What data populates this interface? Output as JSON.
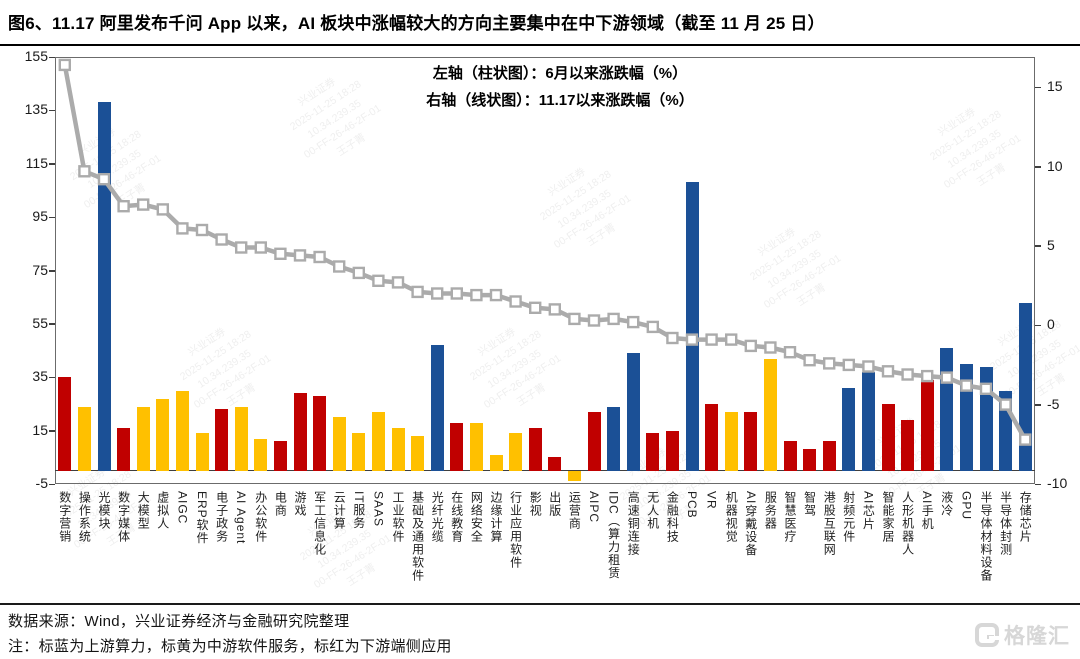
{
  "title": "图6、11.17 阿里发布千问 App 以来，AI 板块中涨幅较大的方向主要集中在中下游领域（截至 11 月 25 日）",
  "legend": {
    "line1": "左轴（柱状图）：6月以来涨跌幅（%）",
    "line2": "右轴（线状图）：11.17以来涨跌幅（%）"
  },
  "footer": {
    "source": "数据来源：Wind，兴业证券经济与金融研究院整理",
    "note": "注：标蓝为上游算力，标黄为中游软件服务，标红为下游端侧应用",
    "logo_text": "格隆汇"
  },
  "colors": {
    "blue": "#1B5096",
    "yellow": "#FFC000",
    "red": "#C00000",
    "line_gray": "#ABABAB",
    "axis_dark": "#3f3f3f"
  },
  "watermark": {
    "lines": "兴业证券\n2025-11-25 18:28\n10.34.239.35\n00-FF-26-46-2F-01\n王子菁"
  },
  "chart_data": {
    "type": "bar+line combo",
    "legend_position": "top-center",
    "categories": [
      "数字营销",
      "操作系统",
      "光模块",
      "数字媒体",
      "大模型",
      "虚拟人",
      "AIGC",
      "ERP软件",
      "电子政务",
      "AI Agent",
      "办公软件",
      "电商",
      "游戏",
      "军工信息化",
      "云计算",
      "IT服务",
      "SAAS",
      "工业软件",
      "基础及通用软件",
      "光纤光缆",
      "在线教育",
      "网络安全",
      "边缘计算",
      "行业应用软件",
      "影视",
      "出版",
      "运营商",
      "AIPC",
      "IDC（算力租赁",
      "高速铜连接",
      "无人机",
      "金融科技",
      "PCB",
      "VR",
      "机器视觉",
      "AI穿戴设备",
      "服务器",
      "智慧医疗",
      "智驾",
      "港股互联网",
      "射频元件",
      "AI芯片",
      "智能家居",
      "人形机器人",
      "AI手机",
      "液冷",
      "GPU",
      "半导体材料设备",
      "半导体封测",
      "存储芯片"
    ],
    "series": [
      {
        "name": "6月以来涨跌幅（%）",
        "type": "bar",
        "axis": "left",
        "values": [
          35,
          24,
          138,
          16,
          24,
          27,
          30,
          14,
          23,
          24,
          12,
          11,
          29,
          28,
          20,
          14,
          22,
          16,
          13,
          47,
          18,
          18,
          6,
          14,
          16,
          5,
          -4,
          22,
          24,
          44,
          14,
          15,
          108,
          25,
          22,
          22,
          42,
          11,
          8,
          11,
          31,
          37,
          25,
          19,
          34,
          46,
          40,
          39,
          30,
          63
        ],
        "groups": [
          "red",
          "yellow",
          "blue",
          "red",
          "yellow",
          "yellow",
          "yellow",
          "yellow",
          "red",
          "yellow",
          "yellow",
          "red",
          "red",
          "red",
          "yellow",
          "yellow",
          "yellow",
          "yellow",
          "yellow",
          "blue",
          "red",
          "yellow",
          "yellow",
          "yellow",
          "red",
          "red",
          "yellow",
          "red",
          "blue",
          "blue",
          "red",
          "red",
          "blue",
          "red",
          "yellow",
          "red",
          "yellow",
          "red",
          "red",
          "red",
          "blue",
          "blue",
          "red",
          "red",
          "red",
          "blue",
          "blue",
          "blue",
          "blue",
          "blue"
        ],
        "group_meaning": {
          "blue": "上游算力",
          "yellow": "中游软件服务",
          "red": "下游端侧应用"
        }
      },
      {
        "name": "11.17以来涨跌幅（%）",
        "type": "line",
        "axis": "right",
        "values": [
          16.4,
          9.7,
          9.2,
          7.5,
          7.6,
          7.3,
          6.1,
          6.0,
          5.4,
          4.9,
          4.9,
          4.5,
          4.4,
          4.3,
          3.7,
          3.3,
          2.8,
          2.7,
          2.1,
          2.0,
          2.0,
          1.9,
          1.9,
          1.5,
          1.1,
          1.0,
          0.4,
          0.3,
          0.4,
          0.2,
          -0.1,
          -0.8,
          -0.9,
          -0.9,
          -0.9,
          -1.3,
          -1.4,
          -1.7,
          -2.2,
          -2.4,
          -2.5,
          -2.6,
          -2.9,
          -3.1,
          -3.2,
          -3.3,
          -3.8,
          -4.0,
          -5.0,
          -7.2
        ]
      }
    ],
    "left_axis": {
      "ticks": [
        155,
        135,
        115,
        95,
        75,
        55,
        35,
        15,
        -5
      ],
      "range": [
        -5,
        155
      ]
    },
    "right_axis": {
      "ticks": [
        15,
        10,
        5,
        0,
        -5,
        -10
      ],
      "range": [
        -10,
        16.9
      ]
    }
  }
}
